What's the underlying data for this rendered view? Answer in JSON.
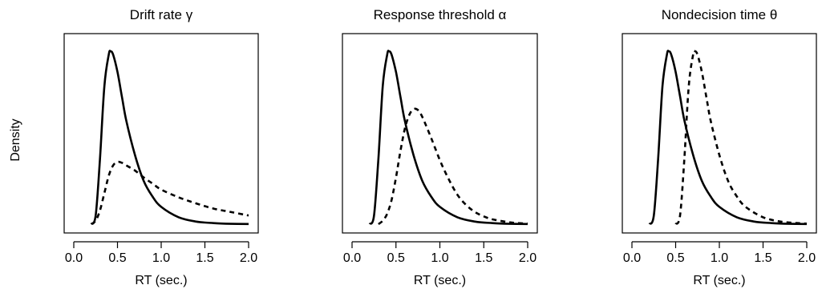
{
  "ylabel": "Density",
  "chart_data": [
    {
      "type": "line",
      "title": "Drift rate γ",
      "xlabel": "RT (sec.)",
      "xlim": [
        0.0,
        2.0
      ],
      "xticks": [
        "0.0",
        "0.5",
        "1.0",
        "1.5",
        "2.0"
      ],
      "series": [
        {
          "style": "solid",
          "x": [
            0.2,
            0.25,
            0.3,
            0.35,
            0.4,
            0.42,
            0.45,
            0.5,
            0.55,
            0.6,
            0.7,
            0.8,
            0.9,
            1.0,
            1.2,
            1.4,
            1.6,
            1.8,
            2.0
          ],
          "y": [
            0.0,
            0.05,
            0.38,
            0.8,
            0.98,
            1.0,
            0.98,
            0.88,
            0.74,
            0.6,
            0.4,
            0.25,
            0.16,
            0.1,
            0.04,
            0.015,
            0.006,
            0.002,
            0.001
          ]
        },
        {
          "style": "dashed",
          "x": [
            0.2,
            0.25,
            0.3,
            0.35,
            0.4,
            0.45,
            0.5,
            0.55,
            0.6,
            0.7,
            0.8,
            0.9,
            1.0,
            1.2,
            1.4,
            1.6,
            1.8,
            2.0
          ],
          "y": [
            0.0,
            0.02,
            0.08,
            0.18,
            0.28,
            0.34,
            0.36,
            0.355,
            0.34,
            0.31,
            0.27,
            0.235,
            0.2,
            0.155,
            0.12,
            0.09,
            0.07,
            0.05
          ]
        }
      ]
    },
    {
      "type": "line",
      "title": "Response threshold α",
      "xlabel": "RT (sec.)",
      "xlim": [
        0.0,
        2.0
      ],
      "xticks": [
        "0.0",
        "0.5",
        "1.0",
        "1.5",
        "2.0"
      ],
      "series": [
        {
          "style": "solid",
          "x": [
            0.2,
            0.25,
            0.3,
            0.35,
            0.4,
            0.42,
            0.45,
            0.5,
            0.55,
            0.6,
            0.7,
            0.8,
            0.9,
            1.0,
            1.2,
            1.4,
            1.6,
            1.8,
            2.0
          ],
          "y": [
            0.0,
            0.05,
            0.38,
            0.8,
            0.98,
            1.0,
            0.98,
            0.88,
            0.74,
            0.6,
            0.4,
            0.25,
            0.16,
            0.1,
            0.04,
            0.015,
            0.006,
            0.002,
            0.001
          ]
        },
        {
          "style": "dashed",
          "x": [
            0.3,
            0.35,
            0.4,
            0.45,
            0.5,
            0.55,
            0.6,
            0.65,
            0.7,
            0.75,
            0.8,
            0.9,
            1.0,
            1.1,
            1.2,
            1.3,
            1.4,
            1.5,
            1.6,
            1.8,
            2.0
          ],
          "y": [
            0.0,
            0.02,
            0.06,
            0.14,
            0.27,
            0.42,
            0.55,
            0.63,
            0.665,
            0.66,
            0.62,
            0.5,
            0.37,
            0.26,
            0.17,
            0.11,
            0.07,
            0.045,
            0.028,
            0.01,
            0.003
          ]
        }
      ]
    },
    {
      "type": "line",
      "title": "Nondecision time θ",
      "xlabel": "RT (sec.)",
      "xlim": [
        0.0,
        2.0
      ],
      "xticks": [
        "0.0",
        "0.5",
        "1.0",
        "1.5",
        "2.0"
      ],
      "series": [
        {
          "style": "solid",
          "x": [
            0.2,
            0.25,
            0.3,
            0.35,
            0.4,
            0.42,
            0.45,
            0.5,
            0.55,
            0.6,
            0.7,
            0.8,
            0.9,
            1.0,
            1.2,
            1.4,
            1.6,
            1.8,
            2.0
          ],
          "y": [
            0.0,
            0.05,
            0.38,
            0.8,
            0.98,
            1.0,
            0.98,
            0.88,
            0.74,
            0.6,
            0.4,
            0.25,
            0.16,
            0.1,
            0.04,
            0.015,
            0.006,
            0.002,
            0.001
          ]
        },
        {
          "style": "dashed",
          "x": [
            0.5,
            0.55,
            0.6,
            0.65,
            0.7,
            0.72,
            0.75,
            0.8,
            0.85,
            0.9,
            1.0,
            1.1,
            1.2,
            1.3,
            1.5,
            1.7,
            1.9,
            2.0
          ],
          "y": [
            0.0,
            0.05,
            0.38,
            0.8,
            0.98,
            1.0,
            0.98,
            0.88,
            0.74,
            0.6,
            0.4,
            0.25,
            0.16,
            0.1,
            0.04,
            0.015,
            0.006,
            0.003
          ]
        }
      ]
    }
  ]
}
